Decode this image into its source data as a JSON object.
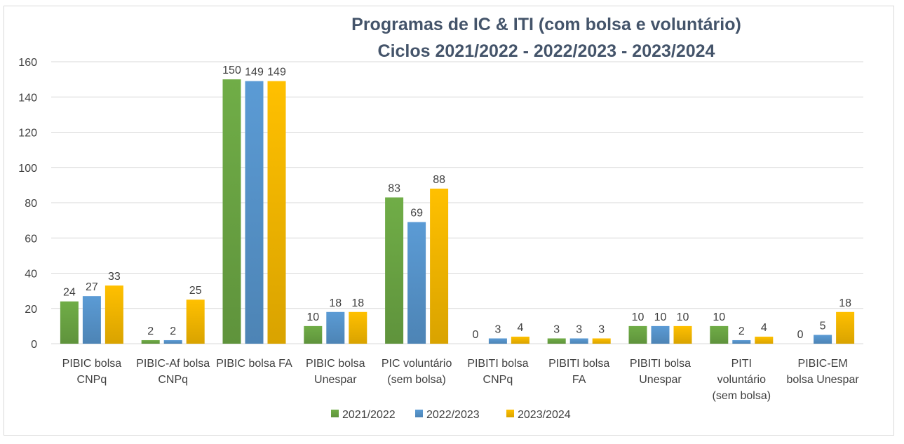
{
  "chart_data": {
    "type": "bar",
    "title_lines": [
      "Programas de IC & ITI (com bolsa e voluntário)",
      "Ciclos 2021/2022 - 2022/2023 - 2023/2024"
    ],
    "categories": [
      [
        "PIBIC bolsa",
        "CNPq"
      ],
      [
        "PIBIC-Af bolsa",
        "CNPq"
      ],
      [
        "PIBIC bolsa FA"
      ],
      [
        "PIBIC bolsa",
        "Unespar"
      ],
      [
        "PIC voluntário",
        "(sem bolsa)"
      ],
      [
        "PIBITI bolsa",
        "CNPq"
      ],
      [
        "PIBITI bolsa",
        "FA"
      ],
      [
        "PIBITI bolsa",
        "Unespar"
      ],
      [
        "PITI",
        "voluntário",
        "(sem bolsa)"
      ],
      [
        "PIBIC-EM",
        "bolsa Unespar"
      ]
    ],
    "series": [
      {
        "name": "2021/2022",
        "color": "#70ad47",
        "values": [
          24,
          2,
          150,
          10,
          83,
          0,
          3,
          10,
          10,
          0
        ]
      },
      {
        "name": "2022/2023",
        "color": "#5b9bd5",
        "values": [
          27,
          2,
          149,
          18,
          69,
          3,
          3,
          10,
          2,
          5
        ]
      },
      {
        "name": "2023/2024",
        "color": "#ffc000",
        "values": [
          33,
          25,
          149,
          18,
          88,
          4,
          3,
          10,
          4,
          18
        ]
      }
    ],
    "ylim": [
      0,
      160
    ],
    "yticks": [
      0,
      20,
      40,
      60,
      80,
      100,
      120,
      140,
      160
    ],
    "grid": true,
    "legend_position": "bottom",
    "data_labels": true
  }
}
